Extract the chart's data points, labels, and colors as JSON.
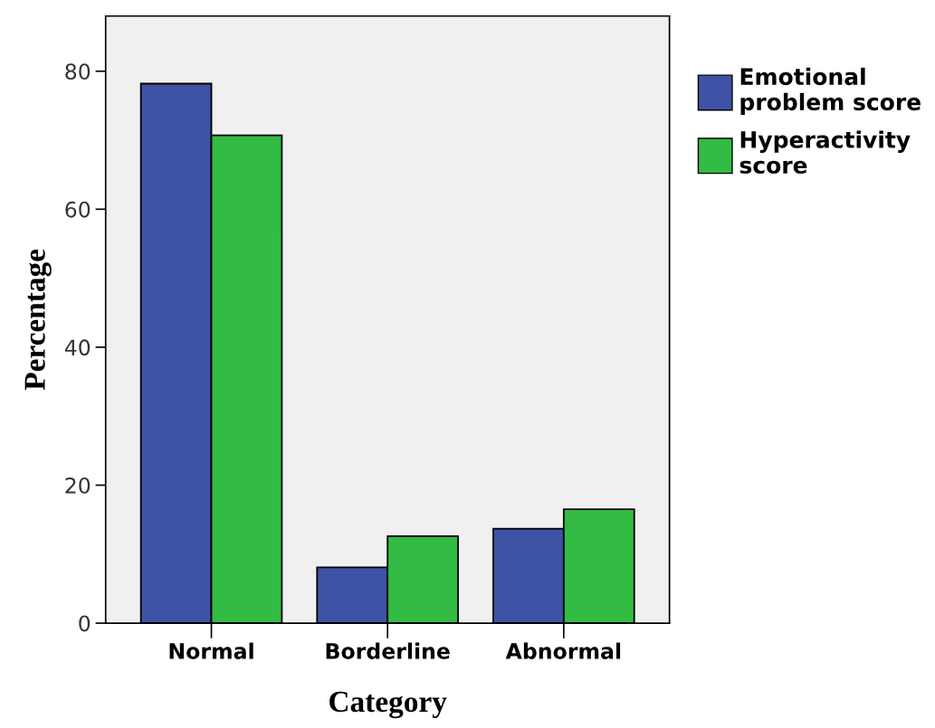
{
  "chart_data": {
    "type": "bar",
    "xlabel": "Category",
    "ylabel": "Percentage",
    "categories": [
      "Normal",
      "Borderline",
      "Abnormal"
    ],
    "series": [
      {
        "name": "Emotional\nproblem score",
        "color": "#3e53a5",
        "values": [
          78.2,
          8.1,
          13.7
        ]
      },
      {
        "name": "Hyperactivity\nscore",
        "color": "#33bb44",
        "values": [
          70.7,
          12.6,
          16.5
        ]
      }
    ],
    "ylim": [
      0,
      88
    ],
    "yticks": [
      0,
      20,
      40,
      60,
      80
    ],
    "grid": false,
    "legend": "top right"
  }
}
